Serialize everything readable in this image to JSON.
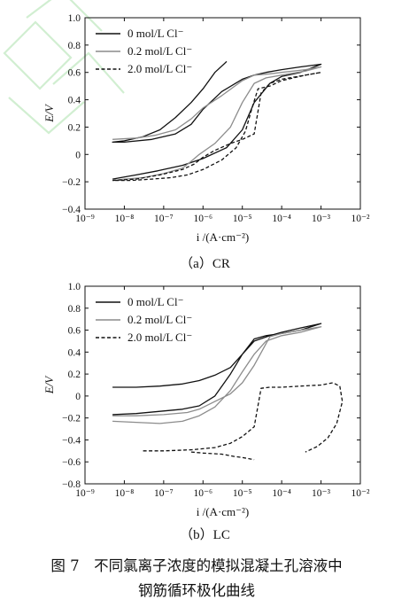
{
  "figure_caption": {
    "line1": "图 7　不同氯离子浓度的模拟混凝土孔溶液中",
    "line2": "钢筋循环极化曲线"
  },
  "chart_data": [
    {
      "type": "line",
      "panel_label": "（a）CR",
      "xlabel": "i /(A·cm⁻²)",
      "ylabel": "E/V",
      "x_scale": "log",
      "xlim": [
        1e-09,
        0.01
      ],
      "ylim": [
        -0.4,
        1.0
      ],
      "x_ticks": [
        "10⁻⁹",
        "10⁻⁸",
        "10⁻⁷",
        "10⁻⁶",
        "10⁻⁵",
        "10⁻⁴",
        "10⁻³",
        "10⁻²"
      ],
      "y_ticks": [
        "−0.4",
        "−0.2",
        "0",
        "0.2",
        "0.4",
        "0.6",
        "0.8",
        "1.0"
      ],
      "legend_position": "top-left",
      "series": [
        {
          "name": "0 mol/L Cl⁻",
          "color": "#111111",
          "dash": "solid",
          "x": [
            4e-06,
            2e-06,
            1e-06,
            5e-07,
            2e-07,
            8e-08,
            3e-08,
            1e-08,
            5e-09,
            1e-08,
            5e-08,
            2e-07,
            5e-07,
            1e-06,
            3e-06,
            1e-05,
            2e-05,
            4e-05,
            0.0001,
            0.0003,
            0.001,
            0.001,
            0.0003,
            0.0001,
            5e-05,
            2e-05,
            1e-05,
            4e-06,
            1e-06,
            3e-07,
            7e-08,
            2e-08,
            8e-09,
            5e-09
          ],
          "y": [
            0.68,
            0.6,
            0.48,
            0.38,
            0.27,
            0.18,
            0.13,
            0.1,
            0.09,
            0.09,
            0.11,
            0.15,
            0.22,
            0.33,
            0.46,
            0.55,
            0.58,
            0.6,
            0.62,
            0.64,
            0.66,
            0.66,
            0.6,
            0.57,
            0.52,
            0.38,
            0.18,
            0.05,
            -0.03,
            -0.08,
            -0.12,
            -0.15,
            -0.17,
            -0.18
          ]
        },
        {
          "name": "0.2 mol/L Cl⁻",
          "color": "#8c8c8c",
          "dash": "solid",
          "x": [
            5e-09,
            2e-08,
            6e-08,
            2e-07,
            5e-07,
            1e-06,
            3e-06,
            1e-05,
            2e-05,
            5e-05,
            0.0001,
            0.0004,
            0.001,
            0.001,
            0.0004,
            0.0001,
            4e-05,
            2e-05,
            1e-05,
            5e-06,
            2e-06,
            8e-07,
            5e-07,
            3e-07,
            1e-07,
            3e-08,
            1e-08,
            5e-09
          ],
          "y": [
            0.11,
            0.12,
            0.14,
            0.18,
            0.26,
            0.34,
            0.43,
            0.54,
            0.58,
            0.59,
            0.6,
            0.62,
            0.64,
            0.64,
            0.61,
            0.58,
            0.56,
            0.52,
            0.38,
            0.2,
            0.08,
            0.0,
            -0.05,
            -0.1,
            -0.14,
            -0.17,
            -0.18,
            -0.19
          ]
        },
        {
          "name": "2.0 mol/L Cl⁻",
          "color": "#111111",
          "dash": "dashed",
          "x": [
            5e-09,
            2e-08,
            8e-08,
            3e-07,
            6e-07,
            1e-06,
            2e-06,
            5e-06,
            1e-05,
            2e-05,
            3e-05,
            5e-05,
            0.0001,
            0.0004,
            0.001,
            0.001,
            0.0004,
            0.0001,
            5e-05,
            2.5e-05,
            1.8e-05,
            1.2e-05,
            7e-06,
            3e-06,
            1e-06,
            4e-07,
            1.5e-07,
            5e-08,
            1.5e-08,
            5e-09
          ],
          "y": [
            -0.19,
            -0.18,
            -0.15,
            -0.11,
            -0.07,
            -0.02,
            0.03,
            0.08,
            0.11,
            0.15,
            0.45,
            0.52,
            0.55,
            0.58,
            0.6,
            0.6,
            0.58,
            0.54,
            0.5,
            0.48,
            0.35,
            0.17,
            0.05,
            -0.04,
            -0.11,
            -0.15,
            -0.17,
            -0.18,
            -0.19,
            -0.19
          ]
        }
      ]
    },
    {
      "type": "line",
      "panel_label": "（b）LC",
      "xlabel": "i /(A·cm⁻²)",
      "ylabel": "E/V",
      "x_scale": "log",
      "xlim": [
        1e-09,
        0.01
      ],
      "ylim": [
        -0.8,
        1.0
      ],
      "x_ticks": [
        "10⁻⁹",
        "10⁻⁸",
        "10⁻⁷",
        "10⁻⁶",
        "10⁻⁵",
        "10⁻⁴",
        "10⁻³",
        "10⁻²"
      ],
      "y_ticks": [
        "−0.8",
        "−0.6",
        "−0.4",
        "−0.2",
        "0",
        "0.2",
        "0.4",
        "0.6",
        "0.8",
        "1.0"
      ],
      "legend_position": "top-left",
      "series": [
        {
          "name": "0 mol/L Cl⁻",
          "color": "#111111",
          "dash": "solid",
          "x": [
            5e-09,
            2e-08,
            8e-08,
            3e-07,
            8e-07,
            2e-06,
            5e-06,
            1e-05,
            2e-05,
            5e-05,
            0.0001,
            0.0003,
            0.001,
            0.001,
            0.0003,
            0.0001,
            4e-05,
            2e-05,
            1e-05,
            5e-06,
            2e-06,
            8e-07,
            3e-07,
            8e-08,
            2e-08,
            5e-09
          ],
          "y": [
            0.08,
            0.08,
            0.09,
            0.11,
            0.14,
            0.19,
            0.26,
            0.38,
            0.5,
            0.55,
            0.58,
            0.62,
            0.66,
            0.66,
            0.6,
            0.57,
            0.55,
            0.52,
            0.38,
            0.2,
            0.0,
            -0.09,
            -0.12,
            -0.14,
            -0.16,
            -0.17
          ]
        },
        {
          "name": "0.2 mol/L Cl⁻",
          "color": "#8c8c8c",
          "dash": "solid",
          "x": [
            5e-09,
            2e-08,
            1e-07,
            4e-07,
            8e-07,
            2e-06,
            5e-06,
            1e-05,
            2e-05,
            5e-05,
            0.0001,
            0.0003,
            0.001,
            0.001,
            0.0003,
            0.0001,
            4e-05,
            2e-05,
            1e-05,
            5e-06,
            2e-06,
            8e-07,
            3e-07,
            8e-08,
            2e-08,
            5e-09
          ],
          "y": [
            -0.18,
            -0.18,
            -0.17,
            -0.15,
            -0.12,
            -0.05,
            0.02,
            0.12,
            0.28,
            0.54,
            0.57,
            0.6,
            0.63,
            0.63,
            0.58,
            0.55,
            0.5,
            0.38,
            0.22,
            0.05,
            -0.1,
            -0.18,
            -0.23,
            -0.25,
            -0.24,
            -0.23
          ]
        },
        {
          "name": "2.0 mol/L Cl⁻",
          "color": "#111111",
          "dash": "dashed",
          "x": [
            3e-08,
            1e-07,
            5e-07,
            2e-06,
            5e-06,
            1e-05,
            2e-05,
            3e-05,
            5e-05,
            0.0001,
            0.0003,
            0.001,
            0.002,
            0.003,
            0.0035,
            0.0025,
            0.0015,
            0.0008,
            0.0004
          ],
          "y": [
            -0.5,
            -0.5,
            -0.49,
            -0.47,
            -0.43,
            -0.37,
            -0.28,
            0.07,
            0.08,
            0.08,
            0.09,
            0.1,
            0.12,
            0.09,
            -0.05,
            -0.25,
            -0.38,
            -0.46,
            -0.51
          ]
        },
        {
          "name": "",
          "color": "#111111",
          "dash": "dashed",
          "x": [
            5e-07,
            1e-06,
            3e-06,
            6e-06,
            1e-05,
            2e-05
          ],
          "y": [
            -0.51,
            -0.52,
            -0.53,
            -0.55,
            -0.56,
            -0.58
          ]
        }
      ]
    }
  ]
}
